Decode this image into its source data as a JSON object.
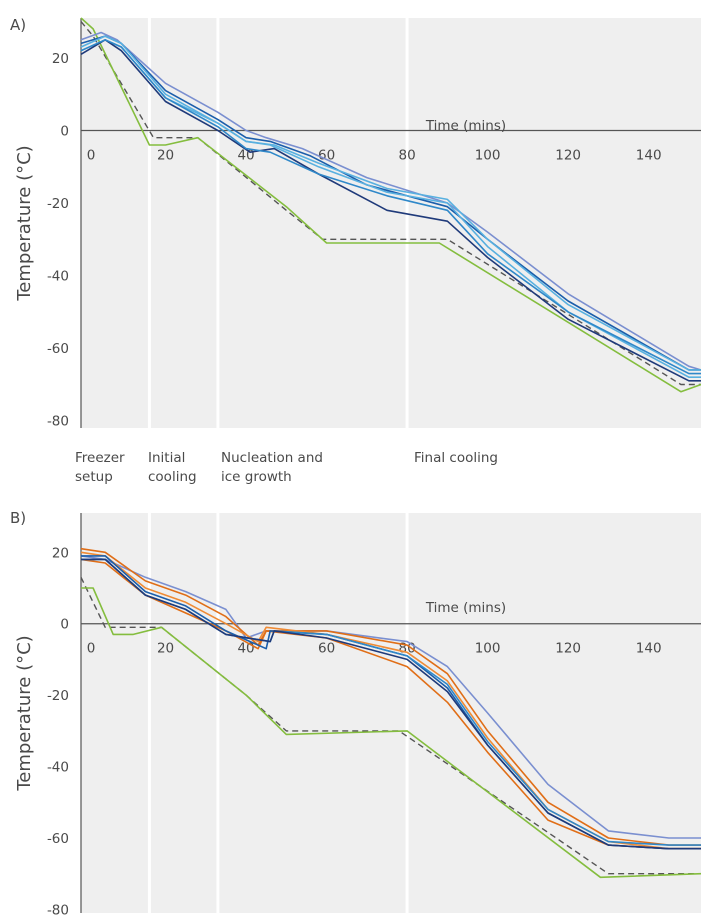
{
  "colors": {
    "panel_bg": "#efefef",
    "axis": "#555555",
    "separator": "#ffffff",
    "dashed_setpoint": "#555555",
    "green": "#84bd3e",
    "blues": [
      "#1f3a7a",
      "#1b5eab",
      "#2f88c9",
      "#58b0e0",
      "#7a8fd0"
    ],
    "oranges": [
      "#e06e17",
      "#ef8b35"
    ]
  },
  "phases": {
    "p1": [
      "Freezer",
      "setup"
    ],
    "p2": [
      "Initial",
      "cooling"
    ],
    "p3": [
      "Nucleation and",
      "ice growth"
    ],
    "p4": [
      "Final cooling"
    ]
  },
  "chart_data": [
    {
      "panel": "A)",
      "type": "line",
      "xlabel": "Time (mins)",
      "ylabel": "Temperature (°C)",
      "x_ticks": [
        0,
        20,
        40,
        60,
        80,
        100,
        120,
        140
      ],
      "y_ticks": [
        20,
        0,
        -20,
        -40,
        -60,
        -80
      ],
      "xlim": [
        -1,
        153
      ],
      "ylim": [
        -82,
        31
      ],
      "phase_boundaries": [
        16,
        33,
        80
      ],
      "grid": false,
      "series": [
        {
          "color_key": "dashed",
          "dashed": true,
          "points": [
            [
              -1,
              30
            ],
            [
              2,
              26
            ],
            [
              17,
              -2
            ],
            [
              28,
              -2
            ],
            [
              50,
              -22
            ],
            [
              59,
              -30
            ],
            [
              90,
              -30
            ],
            [
              148,
              -70
            ],
            [
              153,
              -70
            ]
          ]
        },
        {
          "color_key": "green",
          "points": [
            [
              -1,
              31
            ],
            [
              2,
              28
            ],
            [
              16,
              -4
            ],
            [
              20,
              -4
            ],
            [
              28,
              -2
            ],
            [
              50,
              -21
            ],
            [
              60,
              -31
            ],
            [
              88,
              -31
            ],
            [
              148,
              -72
            ],
            [
              153,
              -70
            ]
          ]
        },
        {
          "color_key": "b4",
          "points": [
            [
              -1,
              25
            ],
            [
              4,
              27
            ],
            [
              8,
              25
            ],
            [
              20,
              13
            ],
            [
              33,
              5
            ],
            [
              40,
              0
            ],
            [
              45,
              -2
            ],
            [
              54,
              -5
            ],
            [
              70,
              -13
            ],
            [
              90,
              -20
            ],
            [
              100,
              -28
            ],
            [
              120,
              -45
            ],
            [
              150,
              -65
            ],
            [
              153,
              -66
            ]
          ]
        },
        {
          "color_key": "b1",
          "points": [
            [
              -1,
              24
            ],
            [
              5,
              26
            ],
            [
              9,
              24
            ],
            [
              20,
              11
            ],
            [
              33,
              3
            ],
            [
              40,
              -2
            ],
            [
              46,
              -3
            ],
            [
              56,
              -7
            ],
            [
              70,
              -15
            ],
            [
              90,
              -21
            ],
            [
              100,
              -30
            ],
            [
              120,
              -47
            ],
            [
              150,
              -66
            ],
            [
              153,
              -66
            ]
          ]
        },
        {
          "color_key": "b3",
          "points": [
            [
              -1,
              22
            ],
            [
              5,
              25
            ],
            [
              9,
              23
            ],
            [
              20,
              9
            ],
            [
              33,
              2
            ],
            [
              40,
              -3
            ],
            [
              46,
              -4
            ],
            [
              58,
              -10
            ],
            [
              75,
              -17
            ],
            [
              90,
              -20
            ],
            [
              100,
              -32
            ],
            [
              120,
              -50
            ],
            [
              150,
              -68
            ],
            [
              153,
              -68
            ]
          ]
        },
        {
          "color_key": "b0",
          "points": [
            [
              -1,
              21
            ],
            [
              5,
              25
            ],
            [
              9,
              22
            ],
            [
              20,
              8
            ],
            [
              33,
              0
            ],
            [
              41,
              -6
            ],
            [
              47,
              -5
            ],
            [
              58,
              -12
            ],
            [
              75,
              -22
            ],
            [
              90,
              -25
            ],
            [
              100,
              -35
            ],
            [
              120,
              -52
            ],
            [
              150,
              -69
            ],
            [
              153,
              -69
            ]
          ]
        },
        {
          "color_key": "b2",
          "points": [
            [
              -1,
              22
            ],
            [
              5,
              25
            ],
            [
              9,
              23
            ],
            [
              20,
              9
            ],
            [
              33,
              1
            ],
            [
              40,
              -5
            ],
            [
              46,
              -6
            ],
            [
              58,
              -12
            ],
            [
              75,
              -18
            ],
            [
              90,
              -22
            ],
            [
              100,
              -34
            ],
            [
              120,
              -50
            ],
            [
              150,
              -67
            ],
            [
              153,
              -67
            ]
          ]
        },
        {
          "color_key": "b3",
          "points": [
            [
              -1,
              23
            ],
            [
              5,
              26
            ],
            [
              9,
              24
            ],
            [
              20,
              10
            ],
            [
              33,
              2
            ],
            [
              40,
              -3
            ],
            [
              47,
              -4
            ],
            [
              58,
              -9
            ],
            [
              75,
              -16
            ],
            [
              90,
              -19
            ],
            [
              100,
              -30
            ],
            [
              120,
              -48
            ],
            [
              150,
              -66
            ],
            [
              153,
              -66
            ]
          ]
        }
      ]
    },
    {
      "panel": "B)",
      "type": "line",
      "xlabel": "Time (mins)",
      "ylabel": "Temperature (°C)",
      "x_ticks": [
        0,
        20,
        40,
        60,
        80,
        100,
        120,
        140
      ],
      "y_ticks": [
        20,
        0,
        -20,
        -40,
        -60,
        -80
      ],
      "xlim": [
        -1,
        153
      ],
      "ylim": [
        -81,
        31
      ],
      "phase_boundaries": [
        16,
        33,
        80
      ],
      "grid": false,
      "series": [
        {
          "color_key": "dashed",
          "dashed": true,
          "points": [
            [
              -1,
              13
            ],
            [
              5,
              -1
            ],
            [
              19,
              -1
            ],
            [
              40,
              -20
            ],
            [
              50,
              -30
            ],
            [
              78,
              -30
            ],
            [
              130,
              -70
            ],
            [
              153,
              -70
            ]
          ]
        },
        {
          "color_key": "green",
          "points": [
            [
              -1,
              10
            ],
            [
              2,
              10
            ],
            [
              7,
              -3
            ],
            [
              12,
              -3
            ],
            [
              19,
              -1
            ],
            [
              40,
              -20
            ],
            [
              50,
              -31
            ],
            [
              80,
              -30
            ],
            [
              128,
              -71
            ],
            [
              153,
              -70
            ]
          ]
        },
        {
          "color_key": "b4",
          "points": [
            [
              -1,
              19
            ],
            [
              5,
              18
            ],
            [
              15,
              13
            ],
            [
              25,
              9
            ],
            [
              35,
              4
            ],
            [
              40,
              -4
            ],
            [
              45,
              -2
            ],
            [
              60,
              -2
            ],
            [
              80,
              -5
            ],
            [
              90,
              -12
            ],
            [
              100,
              -25
            ],
            [
              115,
              -45
            ],
            [
              130,
              -58
            ],
            [
              145,
              -60
            ],
            [
              153,
              -60
            ]
          ]
        },
        {
          "color_key": "o0",
          "points": [
            [
              -1,
              21
            ],
            [
              5,
              20
            ],
            [
              15,
              12
            ],
            [
              25,
              8
            ],
            [
              35,
              2
            ],
            [
              43,
              -6
            ],
            [
              45,
              -2
            ],
            [
              60,
              -2
            ],
            [
              80,
              -6
            ],
            [
              90,
              -14
            ],
            [
              100,
              -30
            ],
            [
              115,
              -50
            ],
            [
              130,
              -60
            ],
            [
              145,
              -62
            ],
            [
              153,
              -62
            ]
          ]
        },
        {
          "color_key": "o1",
          "points": [
            [
              -1,
              20
            ],
            [
              5,
              19
            ],
            [
              15,
              10
            ],
            [
              25,
              6
            ],
            [
              35,
              0
            ],
            [
              43,
              -5
            ],
            [
              45,
              -1
            ],
            [
              60,
              -3
            ],
            [
              80,
              -8
            ],
            [
              90,
              -16
            ],
            [
              100,
              -32
            ],
            [
              115,
              -52
            ],
            [
              130,
              -61
            ],
            [
              145,
              -63
            ],
            [
              153,
              -63
            ]
          ]
        },
        {
          "color_key": "o0",
          "points": [
            [
              -1,
              18
            ],
            [
              5,
              17
            ],
            [
              15,
              8
            ],
            [
              25,
              3
            ],
            [
              35,
              -2
            ],
            [
              43,
              -7
            ],
            [
              45,
              -2
            ],
            [
              60,
              -4
            ],
            [
              80,
              -12
            ],
            [
              90,
              -22
            ],
            [
              100,
              -36
            ],
            [
              115,
              -55
            ],
            [
              130,
              -62
            ],
            [
              145,
              -63
            ],
            [
              153,
              -63
            ]
          ]
        },
        {
          "color_key": "b1",
          "points": [
            [
              -1,
              19
            ],
            [
              5,
              19
            ],
            [
              15,
              9
            ],
            [
              25,
              5
            ],
            [
              35,
              -2
            ],
            [
              45,
              -7
            ],
            [
              46,
              -2
            ],
            [
              60,
              -3
            ],
            [
              80,
              -9
            ],
            [
              90,
              -18
            ],
            [
              100,
              -34
            ],
            [
              115,
              -53
            ],
            [
              130,
              -62
            ],
            [
              145,
              -63
            ],
            [
              153,
              -63
            ]
          ]
        },
        {
          "color_key": "b2",
          "points": [
            [
              -1,
              18
            ],
            [
              5,
              18
            ],
            [
              15,
              8
            ],
            [
              25,
              4
            ],
            [
              35,
              -3
            ],
            [
              46,
              -5
            ],
            [
              47,
              -2
            ],
            [
              60,
              -3
            ],
            [
              80,
              -9
            ],
            [
              90,
              -17
            ],
            [
              100,
              -33
            ],
            [
              115,
              -52
            ],
            [
              130,
              -61
            ],
            [
              145,
              -62
            ],
            [
              153,
              -62
            ]
          ]
        },
        {
          "color_key": "b0",
          "points": [
            [
              -1,
              18
            ],
            [
              5,
              18
            ],
            [
              15,
              8
            ],
            [
              25,
              4
            ],
            [
              35,
              -3
            ],
            [
              46,
              -5
            ],
            [
              47,
              -2
            ],
            [
              60,
              -4
            ],
            [
              80,
              -10
            ],
            [
              90,
              -19
            ],
            [
              100,
              -34
            ],
            [
              115,
              -53
            ],
            [
              130,
              -62
            ],
            [
              145,
              -63
            ],
            [
              153,
              -63
            ]
          ]
        }
      ]
    }
  ]
}
